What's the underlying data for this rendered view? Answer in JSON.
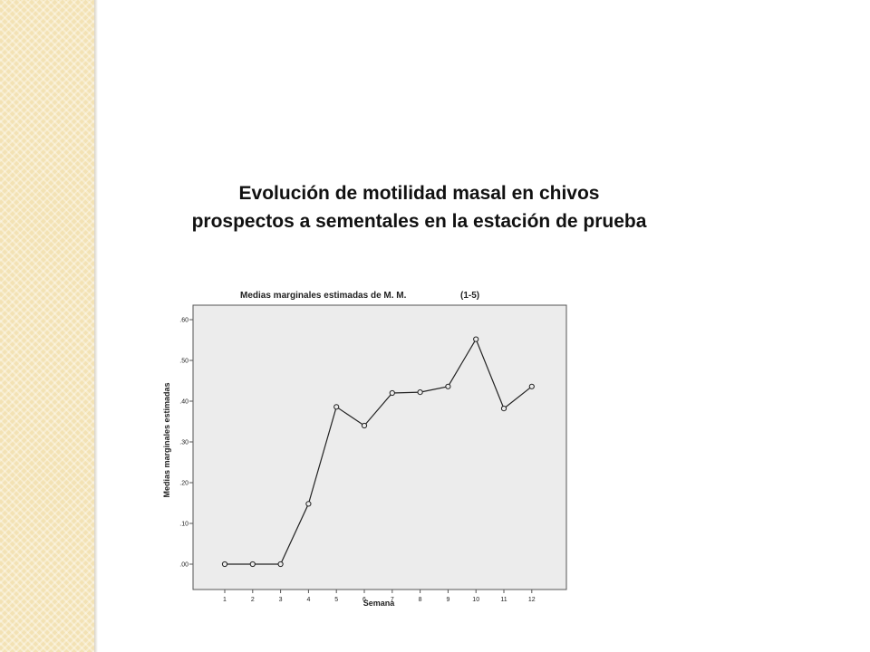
{
  "slide": {
    "title_line1": "Evolución de motilidad masal en chivos",
    "title_line2": "prospectos a sementales en la estación de prueba"
  },
  "colors": {
    "side_band": "#f3e2b4",
    "plot_background": "#ececec",
    "line": "#222222"
  },
  "chart_data": {
    "type": "line",
    "title": "Medias marginales estimadas de M. M.",
    "title_suffix": "(1-5)",
    "xlabel": "Semana",
    "ylabel": "Medias marginales estimadas",
    "categories": [
      "1",
      "2",
      "3",
      "4",
      "5",
      "6",
      "7",
      "8",
      "9",
      "10",
      "11",
      "12"
    ],
    "values": [
      0.0,
      0.0,
      0.0,
      0.148,
      0.386,
      0.34,
      0.42,
      0.422,
      0.436,
      0.552,
      0.382,
      0.436
    ],
    "yticks": [
      ".00",
      ".10",
      ".20",
      ".30",
      ".40",
      ".50",
      ".60"
    ],
    "ylim": [
      0,
      0.6
    ],
    "grid": false,
    "markers": "open-circle"
  }
}
